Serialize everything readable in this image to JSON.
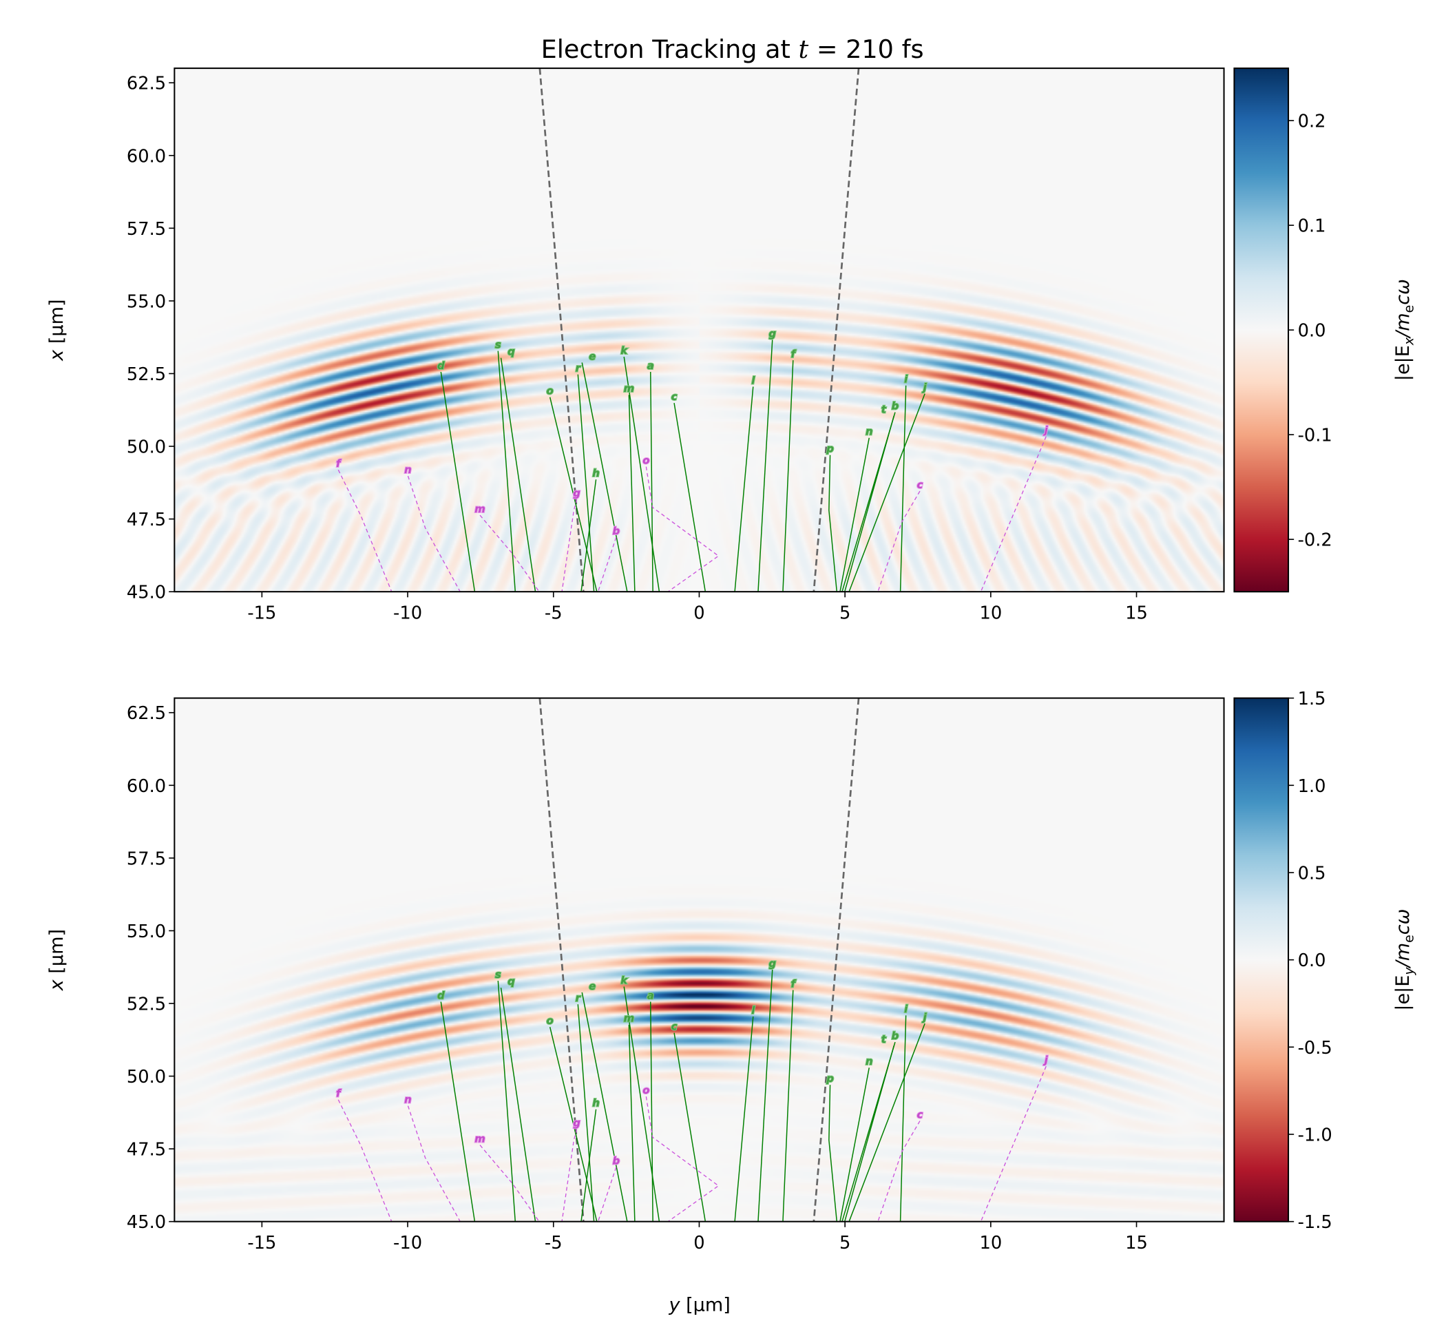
{
  "chart_data": {
    "type": "heatmap",
    "title_prefix": "Electron Tracking at ",
    "title_var": "t",
    "title_suffix": " = 210 fs",
    "xlabel_var": "y",
    "xlabel_unit": " [µm]",
    "ylabel_var": "x",
    "ylabel_unit": " [µm]",
    "xlim": [
      -18,
      18
    ],
    "ylim": [
      45,
      63
    ],
    "xticks": [
      "-15",
      "-10",
      "-5",
      "0",
      "5",
      "10",
      "15"
    ],
    "xtick_values": [
      -15,
      -10,
      -5,
      0,
      5,
      10,
      15
    ],
    "yticks": [
      "45.0",
      "47.5",
      "50.0",
      "52.5",
      "55.0",
      "57.5",
      "60.0",
      "62.5"
    ],
    "ytick_values": [
      45,
      47.5,
      50,
      52.5,
      55,
      57.5,
      60,
      62.5
    ],
    "colormap": "RdBu",
    "colormap_stops": [
      "#67001f",
      "#b2182b",
      "#d6604d",
      "#f4a582",
      "#fddbc7",
      "#f7f7f7",
      "#d1e5f0",
      "#92c5de",
      "#4393c3",
      "#2166ac",
      "#053061"
    ],
    "panels": [
      {
        "field": "Ex",
        "colorbar_label": "|e|E_x/m_e cω",
        "cbar_prefix": "|e|E",
        "cbar_sub": "x",
        "cbar_mid": "/m",
        "cbar_sub2": "e",
        "cbar_suffix": "cω",
        "clim": [
          -0.25,
          0.25
        ],
        "cbar_ticks": [
          "0.2",
          "0.1",
          "0.0",
          "-0.1",
          "-0.2"
        ],
        "cbar_tick_values": [
          0.2,
          0.1,
          0.0,
          -0.1,
          -0.2
        ]
      },
      {
        "field": "Ey",
        "colorbar_label": "|e|E_y/m_e cω",
        "cbar_prefix": "|e|E",
        "cbar_sub": "y",
        "cbar_mid": "/m",
        "cbar_sub2": "e",
        "cbar_suffix": "cω",
        "clim": [
          -1.5,
          1.5
        ],
        "cbar_ticks": [
          "1.5",
          "1.0",
          "0.5",
          "0.0",
          "-0.5",
          "-1.0",
          "-1.5"
        ],
        "cbar_tick_values": [
          1.5,
          1.0,
          0.5,
          0.0,
          -0.5,
          -1.0,
          -1.5
        ]
      }
    ],
    "boundary_lines": [
      {
        "points": [
          [
            -5.47,
            63
          ],
          [
            -3.97,
            45
          ]
        ],
        "color": "#666666",
        "style": "dashed"
      },
      {
        "points": [
          [
            5.47,
            63
          ],
          [
            3.93,
            45
          ]
        ],
        "color": "#666666",
        "style": "dashed"
      }
    ],
    "tracks": [
      {
        "label": "d",
        "kind": "green",
        "points": [
          [
            -8.86,
            52.56
          ],
          [
            -7.7,
            45
          ]
        ]
      },
      {
        "label": "s",
        "kind": "green",
        "points": [
          [
            -6.9,
            53.28
          ],
          [
            -6.31,
            45
          ]
        ]
      },
      {
        "label": "q",
        "kind": "green",
        "points": [
          [
            -6.8,
            53.04
          ],
          [
            -5.62,
            45
          ]
        ]
      },
      {
        "label": "o",
        "kind": "green",
        "points": [
          [
            -5.12,
            51.69
          ],
          [
            -3.51,
            45
          ]
        ]
      },
      {
        "label": "r",
        "kind": "green",
        "points": [
          [
            -4.16,
            52.47
          ],
          [
            -3.61,
            45
          ]
        ]
      },
      {
        "label": "e",
        "kind": "green",
        "points": [
          [
            -4.02,
            52.88
          ],
          [
            -2.47,
            45
          ]
        ]
      },
      {
        "label": "k",
        "kind": "green",
        "points": [
          [
            -2.58,
            53.08
          ],
          [
            -1.37,
            45
          ]
        ]
      },
      {
        "label": "m",
        "kind": "green",
        "points": [
          [
            -2.41,
            51.77
          ],
          [
            -2.21,
            45
          ]
        ]
      },
      {
        "label": "a",
        "kind": "green",
        "points": [
          [
            -1.67,
            52.56
          ],
          [
            -1.59,
            45
          ]
        ]
      },
      {
        "label": "c",
        "kind": "green",
        "points": [
          [
            -0.86,
            51.49
          ],
          [
            0.21,
            45
          ]
        ]
      },
      {
        "label": "h",
        "kind": "green",
        "points": [
          [
            -3.54,
            48.86
          ],
          [
            -4.05,
            45
          ]
        ]
      },
      {
        "label": "l",
        "kind": "green",
        "points": [
          [
            1.85,
            52.05
          ],
          [
            1.22,
            45
          ]
        ]
      },
      {
        "label": "g",
        "kind": "green",
        "points": [
          [
            2.51,
            53.66
          ],
          [
            2.02,
            45
          ]
        ]
      },
      {
        "label": "f",
        "kind": "green",
        "points": [
          [
            3.22,
            52.96
          ],
          [
            2.87,
            45
          ]
        ]
      },
      {
        "label": "p",
        "kind": "green",
        "points": [
          [
            4.49,
            49.7
          ],
          [
            4.45,
            47.8
          ],
          [
            4.72,
            45
          ]
        ]
      },
      {
        "label": "n",
        "kind": "green",
        "points": [
          [
            5.83,
            50.29
          ],
          [
            4.83,
            45
          ]
        ]
      },
      {
        "label": "b",
        "kind": "green",
        "points": [
          [
            6.72,
            51.17
          ],
          [
            4.9,
            45
          ]
        ]
      },
      {
        "label": "t",
        "kind": "green",
        "points": [
          [
            6.68,
            51.05
          ],
          [
            4.99,
            45
          ]
        ]
      },
      {
        "label": "i",
        "kind": "green",
        "points": [
          [
            7.09,
            52.09
          ],
          [
            6.9,
            45
          ]
        ]
      },
      {
        "label": "j",
        "kind": "green",
        "points": [
          [
            7.74,
            51.81
          ],
          [
            5.14,
            45
          ]
        ]
      },
      {
        "label": "f",
        "kind": "magenta",
        "points": [
          [
            -12.38,
            49.19
          ],
          [
            -11.6,
            47.6
          ],
          [
            -10.55,
            45
          ]
        ]
      },
      {
        "label": "n",
        "kind": "magenta",
        "points": [
          [
            -9.99,
            48.98
          ],
          [
            -9.4,
            47.2
          ],
          [
            -8.2,
            45
          ]
        ]
      },
      {
        "label": "m",
        "kind": "magenta",
        "points": [
          [
            -7.52,
            47.63
          ],
          [
            -6.4,
            46.3
          ],
          [
            -5.49,
            45
          ]
        ]
      },
      {
        "label": "g",
        "kind": "magenta",
        "points": [
          [
            -4.2,
            48.18
          ],
          [
            -4.3,
            47.8
          ],
          [
            -4.71,
            45
          ]
        ]
      },
      {
        "label": "b",
        "kind": "magenta",
        "points": [
          [
            -2.85,
            46.87
          ],
          [
            -3.47,
            45
          ]
        ]
      },
      {
        "label": "o",
        "kind": "magenta",
        "points": [
          [
            -1.82,
            49.3
          ],
          [
            -1.6,
            47.9
          ],
          [
            0.66,
            46.23
          ],
          [
            -1.07,
            45
          ]
        ]
      },
      {
        "label": "c",
        "kind": "magenta",
        "points": [
          [
            7.57,
            48.46
          ],
          [
            6.95,
            47.4
          ],
          [
            6.13,
            45
          ]
        ]
      },
      {
        "label": "j",
        "kind": "magenta",
        "points": [
          [
            11.9,
            50.34
          ],
          [
            9.66,
            45
          ]
        ]
      }
    ],
    "track_colors": {
      "green": "#008000",
      "magenta": "#cc55dd",
      "green_label": "#3a9a3a",
      "magenta_label": "#c040c8"
    }
  }
}
